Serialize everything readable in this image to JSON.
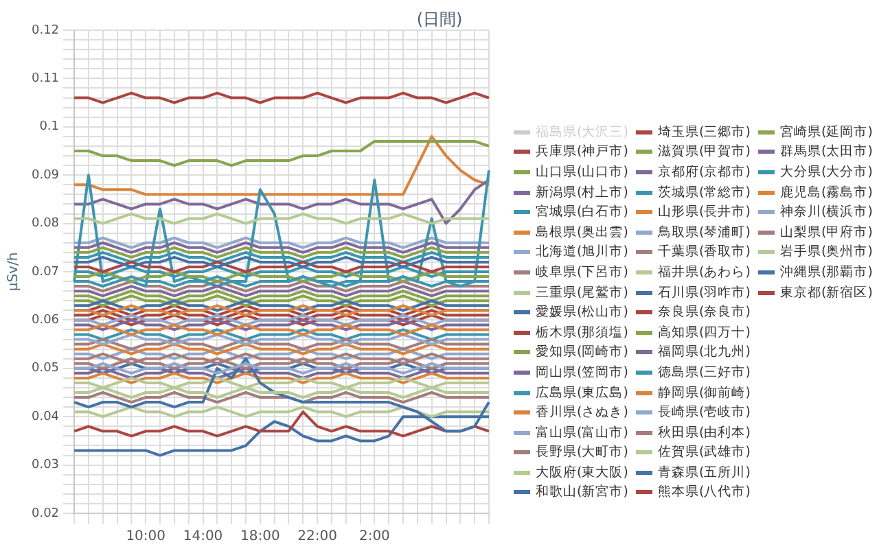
{
  "chart_data": {
    "type": "line",
    "title": "(日間)",
    "ylabel": "μSv/h",
    "legend": "right",
    "grid": true,
    "marker": "none",
    "line_style": "solid",
    "categories": [
      null,
      null,
      null,
      null,
      null,
      "10:00",
      null,
      null,
      null,
      "14:00",
      null,
      null,
      null,
      "18:00",
      null,
      null,
      null,
      "22:00",
      null,
      null,
      null,
      "2:00",
      null,
      null,
      null,
      null,
      null,
      null,
      null,
      null
    ],
    "ylim": [
      0.02,
      0.12
    ],
    "yticks": [
      0.02,
      {
        "value": 0.022,
        "label": null
      },
      {
        "value": 0.024,
        "label": null
      },
      {
        "value": 0.026,
        "label": null
      },
      {
        "value": 0.028,
        "label": null
      },
      0.03,
      {
        "value": 0.032,
        "label": null
      },
      {
        "value": 0.034,
        "label": null
      },
      {
        "value": 0.036,
        "label": null
      },
      {
        "value": 0.038,
        "label": null
      },
      0.04,
      {
        "value": 0.042,
        "label": null
      },
      {
        "value": 0.044,
        "label": null
      },
      {
        "value": 0.046,
        "label": null
      },
      {
        "value": 0.048,
        "label": null
      },
      0.05,
      {
        "value": 0.052,
        "label": null
      },
      {
        "value": 0.054,
        "label": null
      },
      {
        "value": 0.056,
        "label": null
      },
      {
        "value": 0.058,
        "label": null
      },
      0.06,
      {
        "value": 0.062,
        "label": null
      },
      {
        "value": 0.064,
        "label": null
      },
      {
        "value": 0.066,
        "label": null
      },
      {
        "value": 0.068,
        "label": null
      },
      0.07,
      {
        "value": 0.072,
        "label": null
      },
      {
        "value": 0.074,
        "label": null
      },
      {
        "value": 0.076,
        "label": null
      },
      {
        "value": 0.078,
        "label": null
      },
      0.08,
      {
        "value": 0.082,
        "label": null
      },
      {
        "value": 0.084,
        "label": null
      },
      {
        "value": 0.086,
        "label": null
      },
      {
        "value": 0.088,
        "label": null
      },
      0.09,
      {
        "value": 0.092,
        "label": null
      },
      {
        "value": 0.094,
        "label": null
      },
      {
        "value": 0.096,
        "label": null
      },
      {
        "value": 0.098,
        "label": null
      },
      0.1,
      {
        "value": 0.102,
        "label": null
      },
      {
        "value": 0.104,
        "label": null
      },
      {
        "value": 0.106,
        "label": null
      },
      {
        "value": 0.108,
        "label": null
      },
      0.11,
      {
        "value": 0.112,
        "label": null
      },
      {
        "value": 0.114,
        "label": null
      },
      {
        "value": 0.116,
        "label": null
      },
      {
        "value": 0.118,
        "label": null
      },
      0.12
    ],
    "series": [
      {
        "name": "福島県(大沢三)",
        "color": "#cccccc",
        "values": [
          null,
          null,
          null,
          null,
          null,
          null,
          null,
          null,
          null,
          null,
          null,
          null,
          null,
          null,
          null,
          null,
          null,
          null,
          null,
          null,
          null,
          null,
          null,
          null,
          null,
          null,
          null,
          null,
          null,
          null
        ]
      },
      {
        "name": "兵庫県(神戸市)",
        "color": "#aa4643",
        "values": [
          0.106,
          0.106,
          0.105,
          0.106,
          0.107,
          0.106,
          0.106,
          0.105,
          0.106,
          0.106,
          0.107,
          0.106,
          0.106,
          0.105,
          0.106,
          0.106,
          0.106,
          0.107,
          0.106,
          0.105,
          0.106,
          0.106,
          0.106,
          0.107,
          0.106,
          0.106,
          0.105,
          0.106,
          0.107,
          0.106
        ]
      },
      {
        "name": "山口県(山口市)",
        "color": "#89a54e",
        "values": [
          0.095,
          0.095,
          0.094,
          0.094,
          0.093,
          0.093,
          0.093,
          0.092,
          0.093,
          0.093,
          0.093,
          0.092,
          0.093,
          0.093,
          0.093,
          0.093,
          0.094,
          0.094,
          0.095,
          0.095,
          0.095,
          0.097,
          0.097,
          0.097,
          0.097,
          0.097,
          0.097,
          0.097,
          0.097,
          0.096
        ]
      },
      {
        "name": "新潟県(村上市)",
        "color": "#80699b",
        "values": [
          0.075,
          0.075,
          0.076,
          0.075,
          0.074,
          0.075,
          0.075,
          0.076,
          0.075,
          0.075,
          0.074,
          0.075,
          0.076,
          0.075,
          0.075,
          0.075,
          0.074,
          0.075,
          0.075,
          0.076,
          0.075,
          0.075,
          0.075,
          0.074,
          0.075,
          0.076,
          0.075,
          0.075,
          0.075,
          0.075
        ]
      },
      {
        "name": "宮城県(白石市)",
        "color": "#3d96ae",
        "values": [
          0.068,
          0.068,
          0.067,
          0.068,
          0.069,
          0.068,
          0.068,
          0.067,
          0.068,
          0.068,
          0.069,
          0.068,
          0.067,
          0.068,
          0.068,
          0.068,
          0.069,
          0.068,
          0.068,
          0.067,
          0.068,
          0.068,
          0.068,
          0.069,
          0.068,
          0.067,
          0.068,
          0.068,
          0.068,
          0.068
        ]
      },
      {
        "name": "島根県(奥出雲)",
        "color": "#db843d",
        "values": [
          0.058,
          0.058,
          0.059,
          0.058,
          0.057,
          0.058,
          0.058,
          0.059,
          0.058,
          0.058,
          0.057,
          0.058,
          0.059,
          0.058,
          0.058,
          0.058,
          0.057,
          0.058,
          0.058,
          0.059,
          0.058,
          0.058,
          0.058,
          0.057,
          0.058,
          0.059,
          0.058,
          0.058,
          0.058,
          0.058
        ]
      },
      {
        "name": "北海道(旭川市)",
        "color": "#92a8cd",
        "values": [
          0.056,
          0.056,
          0.055,
          0.056,
          0.057,
          0.056,
          0.056,
          0.055,
          0.056,
          0.056,
          0.057,
          0.056,
          0.055,
          0.056,
          0.056,
          0.056,
          0.057,
          0.056,
          0.056,
          0.055,
          0.056,
          0.056,
          0.056,
          0.057,
          0.056,
          0.055,
          0.056,
          0.056,
          0.056,
          0.056
        ]
      },
      {
        "name": "岐阜県(下呂市)",
        "color": "#a47d7c",
        "values": [
          0.055,
          0.055,
          0.056,
          0.055,
          0.054,
          0.055,
          0.055,
          0.056,
          0.055,
          0.055,
          0.054,
          0.055,
          0.056,
          0.055,
          0.055,
          0.055,
          0.054,
          0.055,
          0.055,
          0.056,
          0.055,
          0.055,
          0.055,
          0.054,
          0.055,
          0.056,
          0.055,
          0.055,
          0.055,
          0.055
        ]
      },
      {
        "name": "三重県(尾鷲市)",
        "color": "#b5ca92",
        "values": [
          0.081,
          0.081,
          0.08,
          0.081,
          0.082,
          0.081,
          0.081,
          0.08,
          0.081,
          0.081,
          0.082,
          0.081,
          0.08,
          0.081,
          0.081,
          0.081,
          0.082,
          0.081,
          0.081,
          0.08,
          0.081,
          0.081,
          0.081,
          0.082,
          0.081,
          0.08,
          0.081,
          0.081,
          0.081,
          0.081
        ]
      },
      {
        "name": "愛媛県(松山市)",
        "color": "#4572a7",
        "values": [
          0.072,
          0.072,
          0.073,
          0.072,
          0.071,
          0.072,
          0.072,
          0.073,
          0.072,
          0.072,
          0.071,
          0.072,
          0.073,
          0.072,
          0.072,
          0.072,
          0.071,
          0.072,
          0.072,
          0.073,
          0.072,
          0.072,
          0.072,
          0.071,
          0.072,
          0.073,
          0.072,
          0.072,
          0.072,
          0.072
        ]
      },
      {
        "name": "栃木県(那須塩)",
        "color": "#aa4643",
        "values": [
          0.071,
          0.071,
          0.07,
          0.071,
          0.072,
          0.071,
          0.071,
          0.07,
          0.071,
          0.071,
          0.072,
          0.071,
          0.07,
          0.071,
          0.071,
          0.071,
          0.072,
          0.071,
          0.071,
          0.07,
          0.071,
          0.071,
          0.071,
          0.072,
          0.071,
          0.07,
          0.071,
          0.071,
          0.071,
          0.071
        ]
      },
      {
        "name": "愛知県(岡崎市)",
        "color": "#89a54e",
        "values": [
          0.069,
          0.069,
          0.07,
          0.069,
          0.068,
          0.069,
          0.069,
          0.07,
          0.069,
          0.069,
          0.068,
          0.069,
          0.07,
          0.069,
          0.069,
          0.069,
          0.068,
          0.069,
          0.069,
          0.07,
          0.069,
          0.069,
          0.069,
          0.068,
          0.069,
          0.07,
          0.069,
          0.069,
          0.069,
          0.069
        ]
      },
      {
        "name": "岡山県(笠岡市)",
        "color": "#80699b",
        "values": [
          0.066,
          0.066,
          0.065,
          0.066,
          0.067,
          0.066,
          0.066,
          0.065,
          0.066,
          0.066,
          0.067,
          0.066,
          0.065,
          0.066,
          0.066,
          0.066,
          0.067,
          0.066,
          0.066,
          0.065,
          0.066,
          0.066,
          0.066,
          0.067,
          0.066,
          0.065,
          0.066,
          0.066,
          0.066,
          0.066
        ]
      },
      {
        "name": "広島県(東広島)",
        "color": "#3d96ae",
        "values": [
          0.073,
          0.073,
          0.074,
          0.073,
          0.072,
          0.073,
          0.073,
          0.074,
          0.073,
          0.073,
          0.072,
          0.073,
          0.074,
          0.073,
          0.073,
          0.073,
          0.072,
          0.073,
          0.073,
          0.074,
          0.073,
          0.073,
          0.073,
          0.072,
          0.073,
          0.074,
          0.073,
          0.073,
          0.073,
          0.073
        ]
      },
      {
        "name": "香川県(さぬき)",
        "color": "#db843d",
        "values": [
          0.062,
          0.062,
          0.061,
          0.062,
          0.063,
          0.062,
          0.062,
          0.061,
          0.062,
          0.062,
          0.063,
          0.062,
          0.061,
          0.062,
          0.062,
          0.062,
          0.063,
          0.062,
          0.062,
          0.061,
          0.062,
          0.062,
          0.062,
          0.063,
          0.062,
          0.061,
          0.062,
          0.062,
          0.062,
          0.062
        ]
      },
      {
        "name": "富山県(富山市)",
        "color": "#92a8cd",
        "values": [
          0.05,
          0.05,
          0.051,
          0.05,
          0.049,
          0.05,
          0.05,
          0.051,
          0.05,
          0.05,
          0.049,
          0.05,
          0.051,
          0.05,
          0.05,
          0.05,
          0.049,
          0.05,
          0.05,
          0.051,
          0.05,
          0.05,
          0.05,
          0.049,
          0.05,
          0.051,
          0.05,
          0.05,
          0.05,
          0.05
        ]
      },
      {
        "name": "長野県(大町市)",
        "color": "#a47d7c",
        "values": [
          0.051,
          0.051,
          0.05,
          0.051,
          0.052,
          0.051,
          0.051,
          0.05,
          0.051,
          0.051,
          0.052,
          0.051,
          0.05,
          0.051,
          0.051,
          0.051,
          0.052,
          0.051,
          0.051,
          0.05,
          0.051,
          0.051,
          0.051,
          0.052,
          0.051,
          0.05,
          0.051,
          0.051,
          0.051,
          0.051
        ]
      },
      {
        "name": "大阪府(東大阪)",
        "color": "#b5ca92",
        "values": [
          0.045,
          0.045,
          0.046,
          0.045,
          0.044,
          0.045,
          0.045,
          0.046,
          0.045,
          0.045,
          0.044,
          0.045,
          0.046,
          0.045,
          0.045,
          0.045,
          0.044,
          0.045,
          0.045,
          0.046,
          0.045,
          0.045,
          0.045,
          0.044,
          0.045,
          0.046,
          0.045,
          0.045,
          0.045,
          0.045
        ]
      },
      {
        "name": "和歌山(新宮市)",
        "color": "#4572a7",
        "values": [
          0.043,
          0.042,
          0.043,
          0.043,
          0.042,
          0.043,
          0.043,
          0.042,
          0.043,
          0.043,
          0.05,
          0.048,
          0.052,
          0.047,
          0.045,
          0.044,
          0.043,
          0.043,
          0.043,
          0.043,
          0.043,
          0.043,
          0.043,
          0.042,
          0.041,
          0.039,
          0.037,
          0.037,
          0.038,
          0.043
        ]
      },
      {
        "name": "埼玉県(三郷市)",
        "color": "#aa4643",
        "values": [
          0.037,
          0.038,
          0.037,
          0.037,
          0.036,
          0.037,
          0.037,
          0.038,
          0.037,
          0.037,
          0.036,
          0.037,
          0.038,
          0.037,
          0.037,
          0.037,
          0.041,
          0.038,
          0.037,
          0.038,
          0.037,
          0.037,
          0.037,
          0.036,
          0.037,
          0.038,
          0.037,
          0.037,
          0.038,
          0.037
        ]
      },
      {
        "name": "滋賀県(甲賀市)",
        "color": "#89a54e",
        "values": [
          0.074,
          0.074,
          0.075,
          0.074,
          0.073,
          0.074,
          0.074,
          0.075,
          0.074,
          0.074,
          0.073,
          0.074,
          0.075,
          0.074,
          0.074,
          0.074,
          0.073,
          0.074,
          0.074,
          0.075,
          0.074,
          0.074,
          0.074,
          0.073,
          0.074,
          0.075,
          0.074,
          0.074,
          0.074,
          0.074
        ]
      },
      {
        "name": "京都府(京都市)",
        "color": "#80699b",
        "values": [
          0.059,
          0.059,
          0.058,
          0.059,
          0.06,
          0.059,
          0.059,
          0.058,
          0.059,
          0.059,
          0.06,
          0.059,
          0.058,
          0.059,
          0.059,
          0.059,
          0.06,
          0.059,
          0.059,
          0.058,
          0.059,
          0.059,
          0.059,
          0.06,
          0.059,
          0.058,
          0.059,
          0.059,
          0.059,
          0.059
        ]
      },
      {
        "name": "茨城県(常総市)",
        "color": "#3d96ae",
        "values": [
          0.068,
          0.09,
          0.068,
          0.069,
          0.068,
          0.067,
          0.083,
          0.068,
          0.069,
          0.068,
          0.067,
          0.068,
          0.068,
          0.087,
          0.082,
          0.068,
          0.069,
          0.068,
          0.067,
          0.068,
          0.068,
          0.089,
          0.068,
          0.069,
          0.068,
          0.081,
          0.068,
          0.067,
          0.068,
          0.091
        ]
      },
      {
        "name": "山形県(長井市)",
        "color": "#db843d",
        "values": [
          0.054,
          0.054,
          0.055,
          0.054,
          0.053,
          0.054,
          0.054,
          0.055,
          0.054,
          0.054,
          0.053,
          0.054,
          0.055,
          0.054,
          0.054,
          0.054,
          0.053,
          0.054,
          0.054,
          0.055,
          0.054,
          0.054,
          0.054,
          0.053,
          0.054,
          0.055,
          0.054,
          0.054,
          0.054,
          0.054
        ]
      },
      {
        "name": "鳥取県(琴浦町)",
        "color": "#92a8cd",
        "values": [
          0.06,
          0.06,
          0.059,
          0.06,
          0.061,
          0.06,
          0.06,
          0.059,
          0.06,
          0.06,
          0.061,
          0.06,
          0.059,
          0.06,
          0.06,
          0.06,
          0.061,
          0.06,
          0.06,
          0.059,
          0.06,
          0.06,
          0.06,
          0.061,
          0.06,
          0.059,
          0.06,
          0.06,
          0.06,
          0.06
        ]
      },
      {
        "name": "千葉県(香取市)",
        "color": "#a47d7c",
        "values": [
          0.052,
          0.052,
          0.053,
          0.052,
          0.051,
          0.052,
          0.052,
          0.053,
          0.052,
          0.052,
          0.051,
          0.052,
          0.053,
          0.052,
          0.052,
          0.052,
          0.051,
          0.052,
          0.052,
          0.053,
          0.052,
          0.052,
          0.052,
          0.051,
          0.052,
          0.053,
          0.052,
          0.052,
          0.052,
          0.052
        ]
      },
      {
        "name": "福井県(あわら)",
        "color": "#b5ca92",
        "values": [
          0.047,
          0.047,
          0.046,
          0.047,
          0.048,
          0.047,
          0.047,
          0.046,
          0.047,
          0.047,
          0.048,
          0.047,
          0.046,
          0.047,
          0.047,
          0.047,
          0.048,
          0.047,
          0.047,
          0.046,
          0.047,
          0.047,
          0.047,
          0.048,
          0.047,
          0.046,
          0.047,
          0.047,
          0.047,
          0.047
        ]
      },
      {
        "name": "石川県(羽咋市)",
        "color": "#4572a7",
        "values": [
          0.063,
          0.063,
          0.064,
          0.063,
          0.062,
          0.063,
          0.063,
          0.064,
          0.063,
          0.063,
          0.062,
          0.063,
          0.064,
          0.063,
          0.063,
          0.063,
          0.062,
          0.063,
          0.063,
          0.064,
          0.063,
          0.063,
          0.063,
          0.062,
          0.063,
          0.064,
          0.063,
          0.063,
          0.063,
          0.063
        ]
      },
      {
        "name": "奈良県(奈良市)",
        "color": "#aa4643",
        "values": [
          0.06,
          0.06,
          0.061,
          0.06,
          0.059,
          0.06,
          0.06,
          0.061,
          0.06,
          0.06,
          0.059,
          0.06,
          0.061,
          0.06,
          0.06,
          0.06,
          0.059,
          0.06,
          0.06,
          0.061,
          0.06,
          0.06,
          0.06,
          0.059,
          0.06,
          0.061,
          0.06,
          0.06,
          0.06,
          0.06
        ]
      },
      {
        "name": "高知県(四万十)",
        "color": "#89a54e",
        "values": [
          0.065,
          0.065,
          0.064,
          0.065,
          0.066,
          0.065,
          0.065,
          0.064,
          0.065,
          0.065,
          0.066,
          0.065,
          0.064,
          0.065,
          0.065,
          0.065,
          0.066,
          0.065,
          0.065,
          0.064,
          0.065,
          0.065,
          0.065,
          0.066,
          0.065,
          0.064,
          0.065,
          0.065,
          0.065,
          0.065
        ]
      },
      {
        "name": "福岡県(北九州)",
        "color": "#80699b",
        "values": [
          0.049,
          0.049,
          0.05,
          0.049,
          0.048,
          0.049,
          0.049,
          0.05,
          0.049,
          0.049,
          0.048,
          0.049,
          0.05,
          0.049,
          0.049,
          0.049,
          0.048,
          0.049,
          0.049,
          0.05,
          0.049,
          0.049,
          0.049,
          0.048,
          0.049,
          0.05,
          0.049,
          0.049,
          0.049,
          0.049
        ]
      },
      {
        "name": "徳島県(三好市)",
        "color": "#3d96ae",
        "values": [
          0.057,
          0.057,
          0.056,
          0.057,
          0.058,
          0.057,
          0.057,
          0.056,
          0.057,
          0.057,
          0.058,
          0.057,
          0.056,
          0.057,
          0.057,
          0.057,
          0.058,
          0.057,
          0.057,
          0.056,
          0.057,
          0.057,
          0.057,
          0.058,
          0.057,
          0.056,
          0.057,
          0.057,
          0.057,
          0.057
        ]
      },
      {
        "name": "静岡県(御前崎)",
        "color": "#db843d",
        "values": [
          0.048,
          0.048,
          0.049,
          0.048,
          0.047,
          0.048,
          0.048,
          0.049,
          0.048,
          0.048,
          0.047,
          0.048,
          0.049,
          0.048,
          0.048,
          0.048,
          0.047,
          0.048,
          0.048,
          0.049,
          0.048,
          0.048,
          0.048,
          0.047,
          0.048,
          0.049,
          0.048,
          0.048,
          0.048,
          0.048
        ]
      },
      {
        "name": "長崎県(壱岐市)",
        "color": "#92a8cd",
        "values": [
          0.053,
          0.053,
          0.052,
          0.053,
          0.054,
          0.053,
          0.053,
          0.052,
          0.053,
          0.053,
          0.054,
          0.053,
          0.052,
          0.053,
          0.053,
          0.053,
          0.054,
          0.053,
          0.053,
          0.052,
          0.053,
          0.053,
          0.053,
          0.054,
          0.053,
          0.052,
          0.053,
          0.053,
          0.053,
          0.053
        ]
      },
      {
        "name": "秋田県(由利本)",
        "color": "#a47d7c",
        "values": [
          0.044,
          0.044,
          0.045,
          0.044,
          0.043,
          0.044,
          0.044,
          0.045,
          0.044,
          0.044,
          0.043,
          0.044,
          0.045,
          0.044,
          0.044,
          0.044,
          0.043,
          0.044,
          0.044,
          0.045,
          0.044,
          0.044,
          0.044,
          0.043,
          0.044,
          0.045,
          0.044,
          0.044,
          0.044,
          0.044
        ]
      },
      {
        "name": "佐賀県(武雄市)",
        "color": "#b5ca92",
        "values": [
          0.041,
          0.041,
          0.04,
          0.041,
          0.042,
          0.041,
          0.041,
          0.04,
          0.041,
          0.041,
          0.042,
          0.041,
          0.04,
          0.041,
          0.041,
          0.041,
          0.042,
          0.041,
          0.041,
          0.04,
          0.041,
          0.041,
          0.041,
          0.042,
          0.041,
          0.04,
          0.041,
          0.041,
          0.041,
          0.041
        ]
      },
      {
        "name": "青森県(五所川)",
        "color": "#4572a7",
        "values": [
          0.033,
          0.033,
          0.033,
          0.033,
          0.033,
          0.033,
          0.032,
          0.033,
          0.033,
          0.033,
          0.033,
          0.033,
          0.034,
          0.037,
          0.039,
          0.038,
          0.036,
          0.035,
          0.035,
          0.036,
          0.035,
          0.035,
          0.036,
          0.04,
          0.04,
          0.04,
          0.04,
          0.04,
          0.04,
          0.04
        ]
      },
      {
        "name": "熊本県(八代市)",
        "color": "#aa4643",
        "values": [
          0.061,
          0.061,
          0.062,
          0.061,
          0.06,
          0.061,
          0.061,
          0.062,
          0.061,
          0.061,
          0.06,
          0.061,
          0.062,
          0.061,
          0.061,
          0.061,
          0.06,
          0.061,
          0.061,
          0.062,
          0.061,
          0.061,
          0.061,
          0.06,
          0.061,
          0.062,
          0.061,
          0.061,
          0.061,
          0.061
        ]
      },
      {
        "name": "宮崎県(延岡市)",
        "color": "#89a54e",
        "values": [
          0.064,
          0.064,
          0.063,
          0.064,
          0.065,
          0.064,
          0.064,
          0.063,
          0.064,
          0.064,
          0.065,
          0.064,
          0.063,
          0.064,
          0.064,
          0.064,
          0.065,
          0.064,
          0.064,
          0.063,
          0.064,
          0.064,
          0.064,
          0.065,
          0.064,
          0.063,
          0.064,
          0.064,
          0.064,
          0.064
        ]
      },
      {
        "name": "群馬県(太田市)",
        "color": "#80699b",
        "values": [
          0.084,
          0.084,
          0.085,
          0.084,
          0.083,
          0.084,
          0.084,
          0.085,
          0.084,
          0.084,
          0.083,
          0.084,
          0.085,
          0.084,
          0.084,
          0.084,
          0.083,
          0.084,
          0.084,
          0.085,
          0.084,
          0.084,
          0.084,
          0.083,
          0.084,
          0.085,
          0.08,
          0.083,
          0.087,
          0.089
        ]
      },
      {
        "name": "大分県(大分市)",
        "color": "#3d96ae",
        "values": [
          0.07,
          0.07,
          0.069,
          0.07,
          0.071,
          0.07,
          0.07,
          0.069,
          0.07,
          0.07,
          0.071,
          0.07,
          0.069,
          0.07,
          0.07,
          0.07,
          0.071,
          0.07,
          0.07,
          0.069,
          0.07,
          0.07,
          0.07,
          0.071,
          0.07,
          0.069,
          0.07,
          0.07,
          0.07,
          0.07
        ]
      },
      {
        "name": "鹿児島(霧島市)",
        "color": "#db843d",
        "values": [
          0.088,
          0.088,
          0.087,
          0.087,
          0.087,
          0.086,
          0.086,
          0.086,
          0.086,
          0.086,
          0.086,
          0.086,
          0.086,
          0.086,
          0.086,
          0.086,
          0.086,
          0.086,
          0.086,
          0.086,
          0.086,
          0.086,
          0.086,
          0.086,
          0.092,
          0.098,
          0.094,
          0.091,
          0.089,
          0.088
        ]
      },
      {
        "name": "神奈川(横浜市)",
        "color": "#92a8cd",
        "values": [
          0.076,
          0.076,
          0.077,
          0.076,
          0.075,
          0.076,
          0.076,
          0.077,
          0.076,
          0.076,
          0.075,
          0.076,
          0.077,
          0.076,
          0.076,
          0.076,
          0.075,
          0.076,
          0.076,
          0.077,
          0.076,
          0.076,
          0.076,
          0.075,
          0.076,
          0.077,
          0.076,
          0.076,
          0.076,
          0.076
        ]
      },
      {
        "name": "山梨県(甲府市)",
        "color": "#a47d7c",
        "values": [
          0.067,
          0.067,
          0.066,
          0.067,
          0.068,
          0.067,
          0.067,
          0.066,
          0.067,
          0.067,
          0.068,
          0.067,
          0.066,
          0.067,
          0.067,
          0.067,
          0.068,
          0.067,
          0.067,
          0.066,
          0.067,
          0.067,
          0.067,
          0.068,
          0.067,
          0.066,
          0.067,
          0.067,
          0.067,
          0.067
        ]
      },
      {
        "name": "岩手県(奥州市)",
        "color": "#b5ca92",
        "values": [
          0.061,
          0.061,
          0.062,
          0.061,
          0.06,
          0.061,
          0.061,
          0.062,
          0.061,
          0.061,
          0.06,
          0.061,
          0.062,
          0.061,
          0.061,
          0.061,
          0.06,
          0.061,
          0.061,
          0.062,
          0.061,
          0.061,
          0.061,
          0.06,
          0.061,
          0.062,
          0.061,
          0.061,
          0.061,
          0.061
        ]
      },
      {
        "name": "沖縄県(那覇市)",
        "color": "#4572a7",
        "values": [
          0.05,
          0.05,
          0.049,
          0.05,
          0.051,
          0.05,
          0.05,
          0.049,
          0.05,
          0.05,
          0.051,
          0.05,
          0.049,
          0.05,
          0.05,
          0.05,
          0.051,
          0.05,
          0.05,
          0.049,
          0.05,
          0.05,
          0.05,
          0.051,
          0.05,
          0.049,
          0.05,
          0.05,
          0.05,
          0.05
        ]
      },
      {
        "name": "東京都(新宿区)",
        "color": "#aa4643",
        "values": [
          0.062,
          0.062,
          0.063,
          0.062,
          0.061,
          0.062,
          0.062,
          0.063,
          0.062,
          0.062,
          0.061,
          0.062,
          0.063,
          0.062,
          0.062,
          0.062,
          0.061,
          0.062,
          0.062,
          0.063,
          0.062,
          0.062,
          0.062,
          0.061,
          0.062,
          0.063,
          0.062,
          0.062,
          0.062,
          0.062
        ]
      }
    ]
  }
}
